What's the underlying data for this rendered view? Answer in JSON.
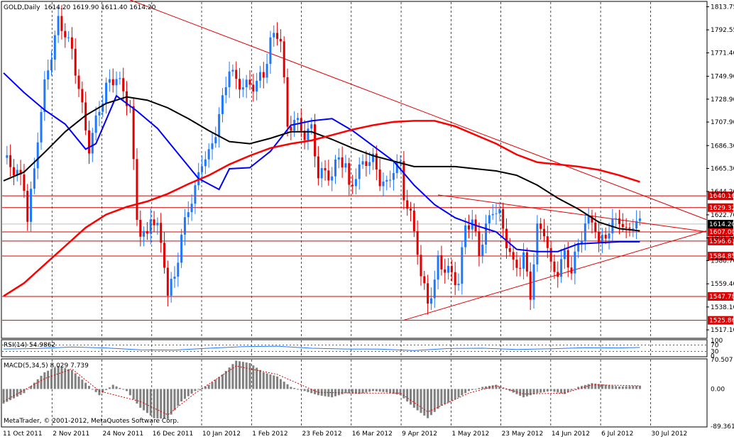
{
  "header": {
    "symbol": "GOLD,Daily",
    "ohlc": "1614.20 1619.90 1611.40 1614.20"
  },
  "chart_data": [
    {
      "type": "candlestick",
      "panel": "main",
      "title": "GOLD,Daily",
      "ylim": [
        1510,
        1818
      ],
      "x_tick_labels": [
        "11 Oct 2011",
        "2 Nov 2011",
        "24 Nov 2011",
        "16 Dec 2011",
        "10 Jan 2012",
        "1 Feb 2012",
        "23 Feb 2012",
        "16 Mar 2012",
        "9 Apr 2012",
        "1 May 2012",
        "23 May 2012",
        "14 Jun 2012",
        "6 Jul 2012",
        "30 Jul 2012"
      ],
      "y_tick_labels": [
        "1813.75",
        "1792.55",
        "1771.40",
        "1749.90",
        "1728.90",
        "1707.90",
        "1686.30",
        "1665.30",
        "1644.20",
        "1622.70",
        "1601.50",
        "1580.70",
        "1559.40",
        "1538.10",
        "1517.10"
      ],
      "last_price": "1614.20",
      "horizontal_levels": [
        {
          "value": 1640.16,
          "label": "1640.16"
        },
        {
          "value": 1629.32,
          "label": "1629.32"
        },
        {
          "value": 1607.0,
          "label": "1607.00"
        },
        {
          "value": 1598.67,
          "label": "1598.67"
        },
        {
          "value": 1584.85,
          "label": "1584.85"
        },
        {
          "value": 1547.78,
          "label": "1547.78"
        },
        {
          "value": 1525.86,
          "label": "1525.86"
        }
      ],
      "trendlines": [
        {
          "name": "descending-resistance",
          "from": [
            27,
            1832
          ],
          "to": [
            186,
            1643
          ]
        },
        {
          "name": "triangle-upper",
          "from": [
            127,
            1641
          ],
          "to": [
            186,
            1616
          ]
        },
        {
          "name": "triangle-lower",
          "from": [
            117,
            1526
          ],
          "to": [
            186,
            1589
          ]
        }
      ],
      "moving_averages": [
        {
          "name": "ma-blue",
          "color": "#0000ff",
          "points": [
            [
              0,
              1753
            ],
            [
              6,
              1735
            ],
            [
              12,
              1719
            ],
            [
              18,
              1706
            ],
            [
              24,
              1683
            ],
            [
              27,
              1688
            ],
            [
              33,
              1732
            ],
            [
              39,
              1718
            ],
            [
              45,
              1702
            ],
            [
              51,
              1679
            ],
            [
              57,
              1656
            ],
            [
              63,
              1646
            ],
            [
              66,
              1665
            ],
            [
              72,
              1666
            ],
            [
              78,
              1681
            ],
            [
              84,
              1705
            ],
            [
              90,
              1709
            ],
            [
              96,
              1711
            ],
            [
              102,
              1700
            ],
            [
              108,
              1686
            ],
            [
              114,
              1672
            ],
            [
              120,
              1650
            ],
            [
              126,
              1632
            ],
            [
              132,
              1620
            ],
            [
              138,
              1613
            ],
            [
              144,
              1607
            ],
            [
              150,
              1591
            ],
            [
              156,
              1589
            ],
            [
              162,
              1589
            ],
            [
              168,
              1596
            ],
            [
              174,
              1597
            ],
            [
              180,
              1598
            ],
            [
              186,
              1598
            ]
          ]
        },
        {
          "name": "ma-black",
          "color": "#000000",
          "points": [
            [
              0,
              1654
            ],
            [
              6,
              1662
            ],
            [
              12,
              1680
            ],
            [
              18,
              1699
            ],
            [
              24,
              1714
            ],
            [
              30,
              1725
            ],
            [
              36,
              1731
            ],
            [
              42,
              1728
            ],
            [
              48,
              1721
            ],
            [
              54,
              1711
            ],
            [
              60,
              1700
            ],
            [
              66,
              1690
            ],
            [
              72,
              1688
            ],
            [
              78,
              1693
            ],
            [
              84,
              1699
            ],
            [
              90,
              1699
            ],
            [
              96,
              1692
            ],
            [
              102,
              1684
            ],
            [
              108,
              1677
            ],
            [
              114,
              1672
            ],
            [
              120,
              1667
            ],
            [
              126,
              1667
            ],
            [
              132,
              1667
            ],
            [
              138,
              1665
            ],
            [
              144,
              1663
            ],
            [
              150,
              1659
            ],
            [
              156,
              1650
            ],
            [
              162,
              1638
            ],
            [
              168,
              1628
            ],
            [
              174,
              1616
            ],
            [
              180,
              1610
            ],
            [
              186,
              1608
            ]
          ]
        },
        {
          "name": "ma-red",
          "color": "#ff0000",
          "points": [
            [
              0,
              1548
            ],
            [
              6,
              1560
            ],
            [
              12,
              1577
            ],
            [
              18,
              1594
            ],
            [
              24,
              1611
            ],
            [
              30,
              1623
            ],
            [
              36,
              1630
            ],
            [
              42,
              1635
            ],
            [
              48,
              1642
            ],
            [
              54,
              1651
            ],
            [
              60,
              1659
            ],
            [
              66,
              1669
            ],
            [
              72,
              1677
            ],
            [
              78,
              1684
            ],
            [
              84,
              1688
            ],
            [
              90,
              1691
            ],
            [
              96,
              1696
            ],
            [
              102,
              1701
            ],
            [
              108,
              1705
            ],
            [
              114,
              1708
            ],
            [
              120,
              1709
            ],
            [
              126,
              1709
            ],
            [
              132,
              1704
            ],
            [
              138,
              1696
            ],
            [
              144,
              1688
            ],
            [
              150,
              1678
            ],
            [
              156,
              1671
            ],
            [
              162,
              1669
            ],
            [
              168,
              1667
            ],
            [
              174,
              1664
            ],
            [
              180,
              1659
            ],
            [
              186,
              1653
            ]
          ]
        }
      ],
      "price_path": [
        [
          0,
          1675
        ],
        [
          2,
          1668
        ],
        [
          4,
          1661
        ],
        [
          6,
          1649
        ],
        [
          7,
          1620
        ],
        [
          9,
          1663
        ],
        [
          10,
          1695
        ],
        [
          12,
          1741
        ],
        [
          14,
          1771
        ],
        [
          16,
          1800
        ],
        [
          18,
          1790
        ],
        [
          20,
          1772
        ],
        [
          22,
          1740
        ],
        [
          24,
          1700
        ],
        [
          25,
          1685
        ],
        [
          28,
          1720
        ],
        [
          30,
          1740
        ],
        [
          33,
          1750
        ],
        [
          35,
          1735
        ],
        [
          37,
          1722
        ],
        [
          38,
          1668
        ],
        [
          39,
          1620
        ],
        [
          40,
          1608
        ],
        [
          42,
          1601
        ],
        [
          43,
          1623
        ],
        [
          45,
          1610
        ],
        [
          47,
          1580
        ],
        [
          48,
          1549
        ],
        [
          50,
          1567
        ],
        [
          52,
          1602
        ],
        [
          54,
          1629
        ],
        [
          56,
          1645
        ],
        [
          58,
          1673
        ],
        [
          60,
          1677
        ],
        [
          62,
          1700
        ],
        [
          64,
          1727
        ],
        [
          66,
          1759
        ],
        [
          68,
          1744
        ],
        [
          71,
          1741
        ],
        [
          73,
          1742
        ],
        [
          76,
          1751
        ],
        [
          78,
          1782
        ],
        [
          80,
          1789
        ],
        [
          81,
          1785
        ],
        [
          83,
          1702
        ],
        [
          85,
          1710
        ],
        [
          88,
          1697
        ],
        [
          90,
          1701
        ],
        [
          92,
          1660
        ],
        [
          94,
          1661
        ],
        [
          96,
          1659
        ],
        [
          98,
          1676
        ],
        [
          100,
          1668
        ],
        [
          101,
          1645
        ],
        [
          103,
          1660
        ],
        [
          106,
          1673
        ],
        [
          108,
          1673
        ],
        [
          110,
          1655
        ],
        [
          112,
          1649
        ],
        [
          114,
          1666
        ],
        [
          116,
          1668
        ],
        [
          117,
          1641
        ],
        [
          119,
          1621
        ],
        [
          121,
          1592
        ],
        [
          122,
          1566
        ],
        [
          123,
          1554
        ],
        [
          124,
          1543
        ],
        [
          126,
          1560
        ],
        [
          127,
          1581
        ],
        [
          129,
          1573
        ],
        [
          131,
          1568
        ],
        [
          133,
          1560
        ],
        [
          135,
          1614
        ],
        [
          137,
          1616
        ],
        [
          139,
          1589
        ],
        [
          141,
          1610
        ],
        [
          143,
          1629
        ],
        [
          145,
          1622
        ],
        [
          147,
          1598
        ],
        [
          149,
          1576
        ],
        [
          151,
          1578
        ],
        [
          152,
          1584
        ],
        [
          154,
          1550
        ],
        [
          156,
          1609
        ],
        [
          158,
          1609
        ],
        [
          160,
          1574
        ],
        [
          162,
          1571
        ],
        [
          164,
          1586
        ],
        [
          166,
          1572
        ],
        [
          168,
          1595
        ],
        [
          170,
          1615
        ],
        [
          172,
          1617
        ],
        [
          173,
          1613
        ],
        [
          174,
          1594
        ],
        [
          176,
          1605
        ],
        [
          178,
          1614
        ],
        [
          180,
          1620
        ],
        [
          182,
          1605
        ],
        [
          184,
          1616
        ],
        [
          186,
          1614
        ]
      ],
      "x_range": [
        0,
        205
      ]
    },
    {
      "type": "line",
      "panel": "rsi",
      "indicator": "RSI(14)",
      "label": "RSI(14) 54.9862",
      "ylim": [
        0,
        100
      ],
      "y_tick_labels": [
        "100",
        "70",
        "30",
        "0"
      ],
      "values": [
        [
          0,
          45
        ],
        [
          10,
          48
        ],
        [
          20,
          58
        ],
        [
          30,
          52
        ],
        [
          40,
          40
        ],
        [
          50,
          38
        ],
        [
          60,
          50
        ],
        [
          70,
          60
        ],
        [
          80,
          63
        ],
        [
          90,
          50
        ],
        [
          100,
          45
        ],
        [
          110,
          44
        ],
        [
          120,
          35
        ],
        [
          130,
          48
        ],
        [
          140,
          50
        ],
        [
          150,
          42
        ],
        [
          160,
          47
        ],
        [
          170,
          53
        ],
        [
          180,
          52
        ],
        [
          186,
          55
        ]
      ]
    },
    {
      "type": "bar",
      "panel": "macd",
      "indicator": "MACD(5,34,5)",
      "label": "MACD(5,34,5) 8.029 7.739",
      "ylim": [
        -89.361,
        70.507
      ],
      "y_tick_labels": [
        "70.507",
        "0.00",
        "-89.361"
      ],
      "macd_points": [
        [
          0,
          -35
        ],
        [
          6,
          -10
        ],
        [
          12,
          40
        ],
        [
          16,
          55
        ],
        [
          20,
          45
        ],
        [
          24,
          15
        ],
        [
          28,
          -15
        ],
        [
          32,
          10
        ],
        [
          36,
          -5
        ],
        [
          40,
          -45
        ],
        [
          44,
          -70
        ],
        [
          48,
          -72
        ],
        [
          52,
          -30
        ],
        [
          56,
          -5
        ],
        [
          60,
          10
        ],
        [
          64,
          35
        ],
        [
          68,
          68
        ],
        [
          72,
          62
        ],
        [
          76,
          40
        ],
        [
          80,
          30
        ],
        [
          84,
          5
        ],
        [
          88,
          -5
        ],
        [
          92,
          -15
        ],
        [
          96,
          -20
        ],
        [
          100,
          -10
        ],
        [
          104,
          -12
        ],
        [
          108,
          -5
        ],
        [
          112,
          -8
        ],
        [
          116,
          -15
        ],
        [
          120,
          -45
        ],
        [
          124,
          -70
        ],
        [
          128,
          -40
        ],
        [
          132,
          -25
        ],
        [
          136,
          -5
        ],
        [
          140,
          5
        ],
        [
          144,
          10
        ],
        [
          148,
          -5
        ],
        [
          152,
          -20
        ],
        [
          156,
          -10
        ],
        [
          160,
          -5
        ],
        [
          164,
          -12
        ],
        [
          168,
          5
        ],
        [
          172,
          14
        ],
        [
          176,
          10
        ],
        [
          180,
          6
        ],
        [
          186,
          8.029
        ]
      ],
      "signal_points": [
        [
          0,
          -30
        ],
        [
          12,
          25
        ],
        [
          20,
          48
        ],
        [
          28,
          -5
        ],
        [
          40,
          -30
        ],
        [
          48,
          -62
        ],
        [
          56,
          -10
        ],
        [
          68,
          55
        ],
        [
          80,
          35
        ],
        [
          92,
          -8
        ],
        [
          104,
          -10
        ],
        [
          116,
          -10
        ],
        [
          124,
          -55
        ],
        [
          136,
          -10
        ],
        [
          144,
          8
        ],
        [
          152,
          -12
        ],
        [
          164,
          -10
        ],
        [
          172,
          10
        ],
        [
          186,
          7.739
        ]
      ]
    }
  ],
  "footer": {
    "copyright": "MetaTrader, © 2001-2012, MetaQuotes Software Corp."
  }
}
